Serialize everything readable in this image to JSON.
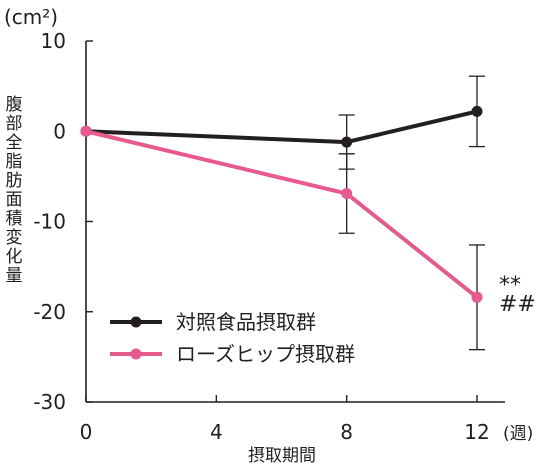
{
  "chart_data": {
    "type": "line",
    "unit_label": "(cm²)",
    "ylabel": "腹部全脂肪面積変化量",
    "xlabel": "摂取期間",
    "x_unit_label": "(週)",
    "x": [
      0,
      8,
      12
    ],
    "xticks": [
      "0",
      "4",
      "8",
      "12"
    ],
    "xtick_values": [
      0,
      4,
      8,
      12
    ],
    "yticks": [
      "10",
      "0",
      "-10",
      "-20",
      "-30"
    ],
    "ytick_values": [
      10,
      0,
      -10,
      -20,
      -30
    ],
    "xlim": [
      0,
      13.5
    ],
    "ylim": [
      -30,
      10
    ],
    "grid": false,
    "legend_position": "lower-left",
    "series": [
      {
        "name": "対照食品摂取群",
        "color": "#231f20",
        "values": [
          0,
          -1.2,
          2.2
        ],
        "error": [
          null,
          3.0,
          3.9
        ]
      },
      {
        "name": "ローズヒップ摂取群",
        "color": "#e85a8e",
        "values": [
          0,
          -6.9,
          -18.4
        ],
        "error": [
          null,
          4.4,
          5.8
        ]
      }
    ],
    "annotations": [
      {
        "text": "**",
        "x": 12,
        "y": -16.8
      },
      {
        "text": "##",
        "x": 12,
        "y": -18.9
      }
    ]
  }
}
